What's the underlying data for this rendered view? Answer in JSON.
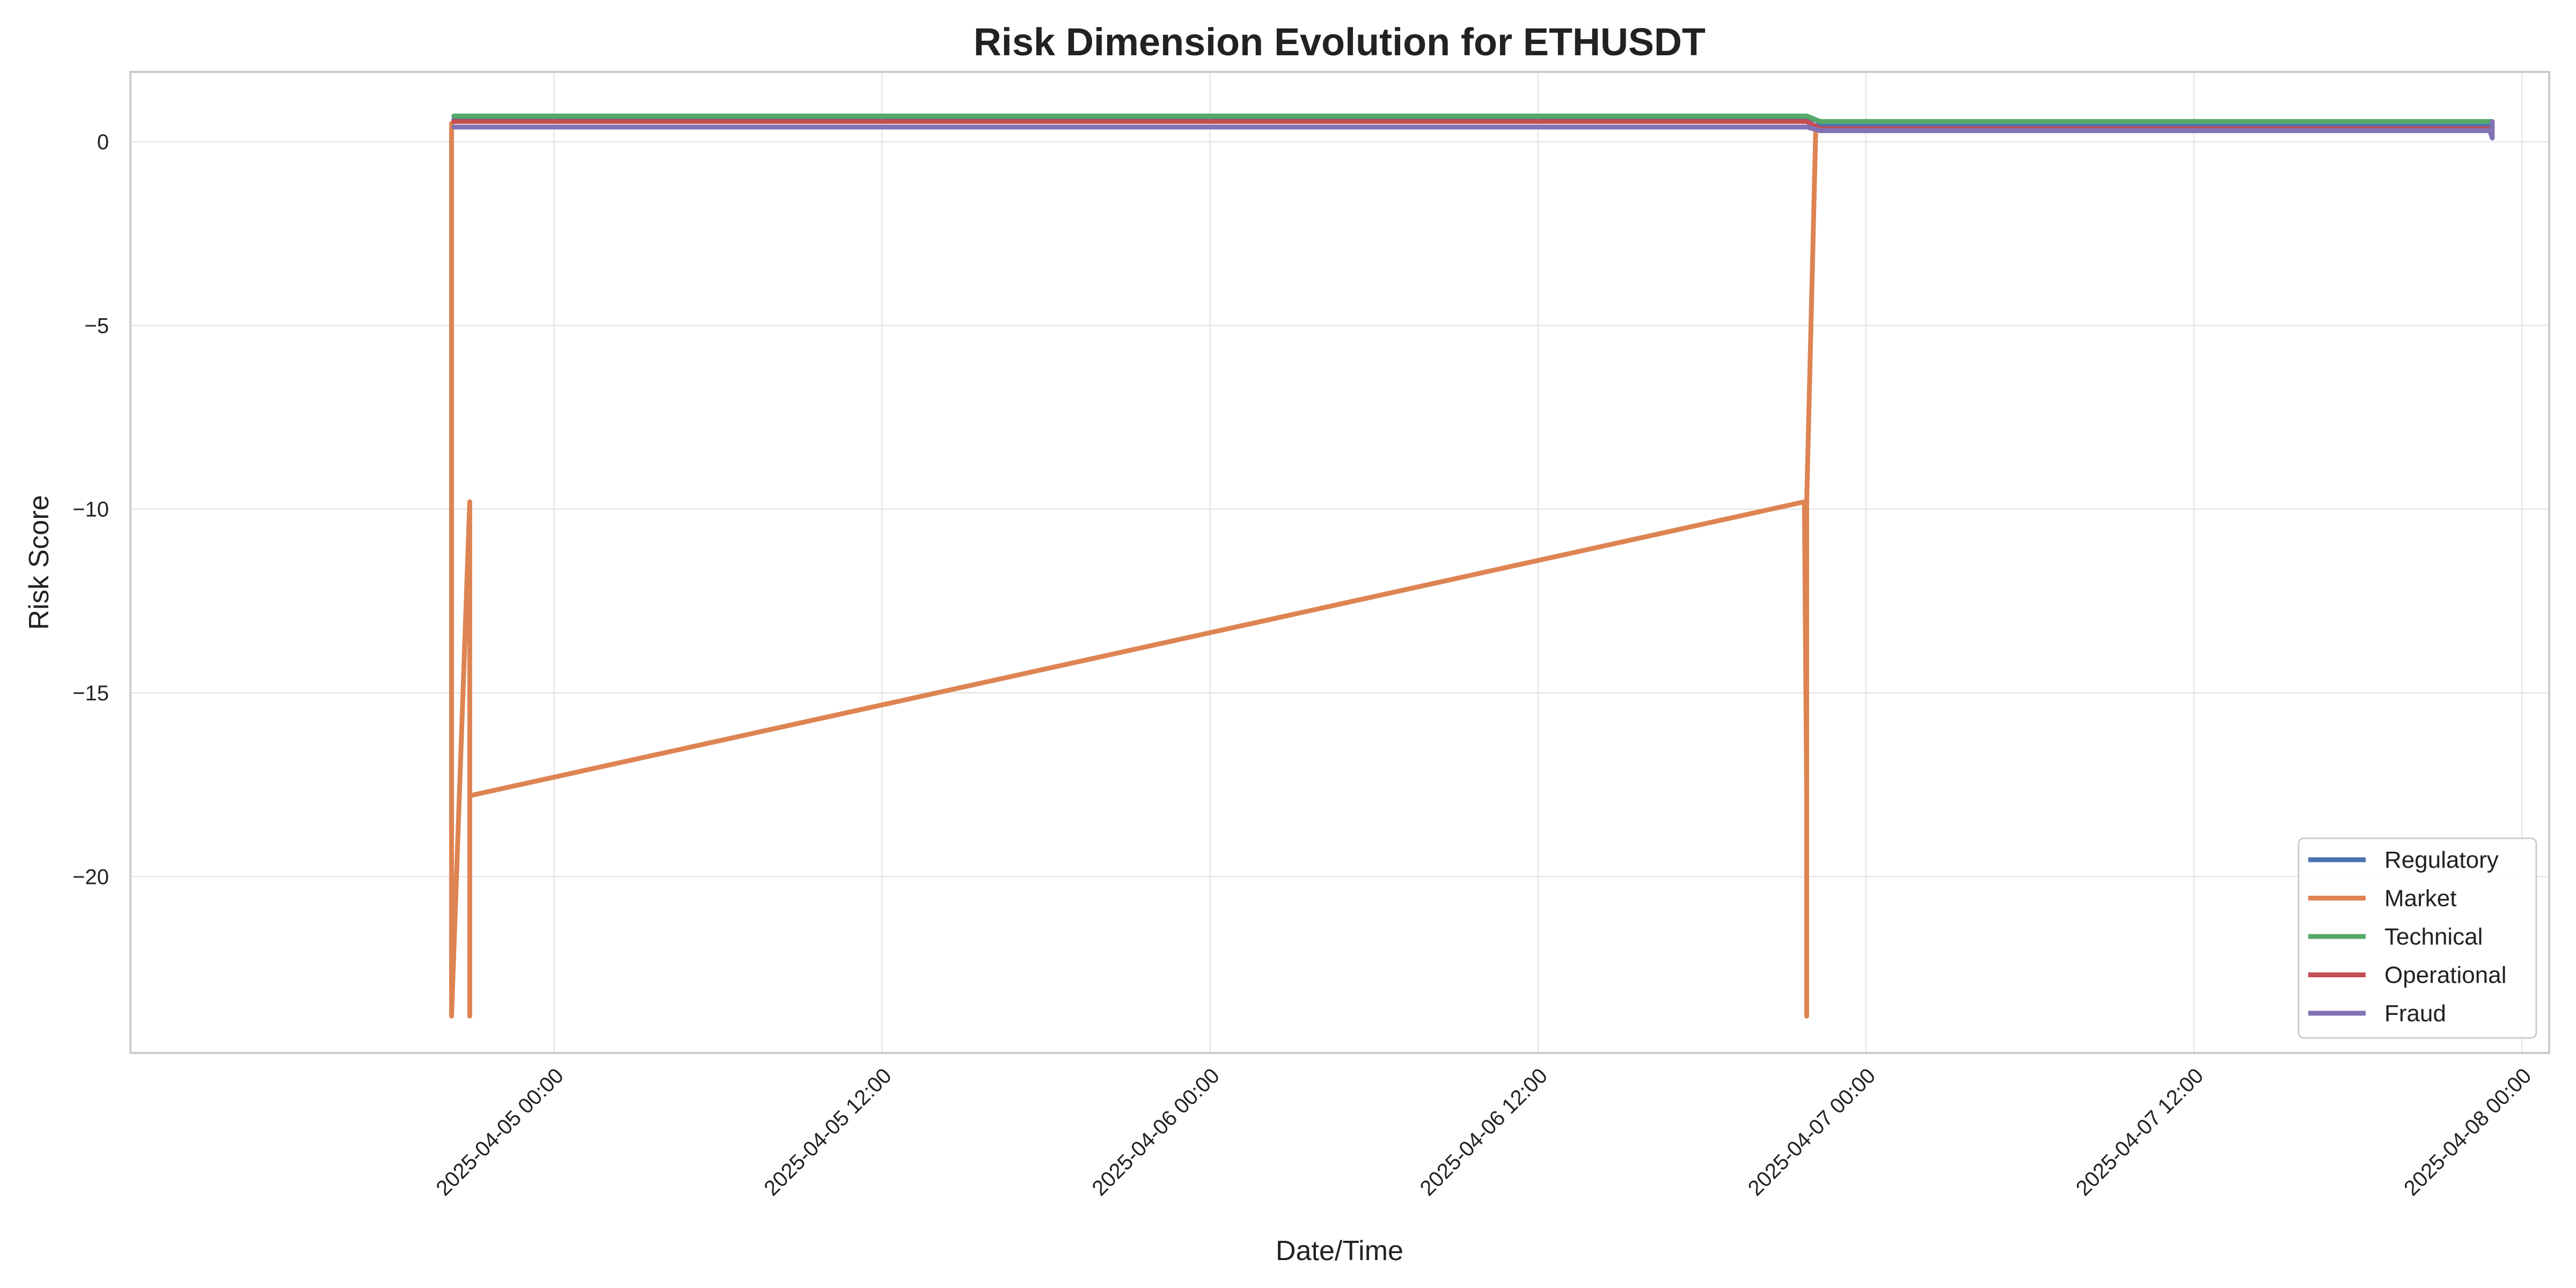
{
  "chart_data": {
    "type": "line",
    "title": "Risk Dimension Evolution for ETHUSDT",
    "xlabel": "Date/Time",
    "ylabel": "Risk Score",
    "x_type": "datetime",
    "xlim": [
      "2025-04-04 08:30",
      "2025-04-08 01:00"
    ],
    "ylim": [
      -24.8,
      1.9
    ],
    "x_ticks": [
      {
        "value": "2025-04-05 00:00",
        "label": "2025-04-05 00:00"
      },
      {
        "value": "2025-04-05 12:00",
        "label": "2025-04-05 12:00"
      },
      {
        "value": "2025-04-06 00:00",
        "label": "2025-04-06 00:00"
      },
      {
        "value": "2025-04-06 12:00",
        "label": "2025-04-06 12:00"
      },
      {
        "value": "2025-04-07 00:00",
        "label": "2025-04-07 00:00"
      },
      {
        "value": "2025-04-07 12:00",
        "label": "2025-04-07 12:00"
      },
      {
        "value": "2025-04-08 00:00",
        "label": "2025-04-08 00:00"
      }
    ],
    "y_ticks": [
      {
        "value": 0,
        "label": "0"
      },
      {
        "value": -5,
        "label": "−5"
      },
      {
        "value": -10,
        "label": "−10"
      },
      {
        "value": -15,
        "label": "−15"
      },
      {
        "value": -20,
        "label": "−20"
      }
    ],
    "grid": true,
    "legend_position": "lower-right",
    "series": [
      {
        "name": "Regulatory",
        "color": "#4c72b0",
        "x": [
          "2025-04-04 20:20",
          "2025-04-06 22:10",
          "2025-04-06 22:20",
          "2025-04-07 22:55"
        ],
        "y": [
          0.6,
          0.6,
          0.45,
          0.45
        ]
      },
      {
        "name": "Market",
        "color": "#dd8452",
        "x": [
          "2025-04-04 20:15",
          "2025-04-04 20:15",
          "2025-04-04 20:15",
          "2025-04-04 20:15",
          "2025-04-04 20:55",
          "2025-04-04 20:55",
          "2025-04-04 20:55",
          "2025-04-04 20:55",
          "2025-04-06 21:45",
          "2025-04-06 21:50",
          "2025-04-06 21:50",
          "2025-04-06 21:50",
          "2025-04-06 22:10",
          "2025-04-06 22:15",
          "2025-04-07 22:55"
        ],
        "y": [
          0.5,
          -17.8,
          -9.8,
          -23.8,
          -9.8,
          -17.8,
          -23.8,
          -17.8,
          -9.8,
          -17.8,
          -23.8,
          -9.8,
          0.4,
          0.4,
          0.4
        ]
      },
      {
        "name": "Technical",
        "color": "#55a868",
        "x": [
          "2025-04-04 20:20",
          "2025-04-06 21:50",
          "2025-04-06 22:20",
          "2025-04-07 22:55"
        ],
        "y": [
          0.7,
          0.7,
          0.55,
          0.55
        ]
      },
      {
        "name": "Operational",
        "color": "#c44e52",
        "x": [
          "2025-04-04 20:20",
          "2025-04-06 21:50",
          "2025-04-06 22:20",
          "2025-04-07 22:55"
        ],
        "y": [
          0.55,
          0.55,
          0.35,
          0.35
        ]
      },
      {
        "name": "Fraud",
        "color": "#8172b3",
        "x": [
          "2025-04-04 20:20",
          "2025-04-06 21:50",
          "2025-04-06 22:20",
          "2025-04-07 22:50",
          "2025-04-07 22:55",
          "2025-04-07 22:55"
        ],
        "y": [
          0.4,
          0.4,
          0.3,
          0.3,
          0.1,
          0.55
        ]
      }
    ]
  }
}
